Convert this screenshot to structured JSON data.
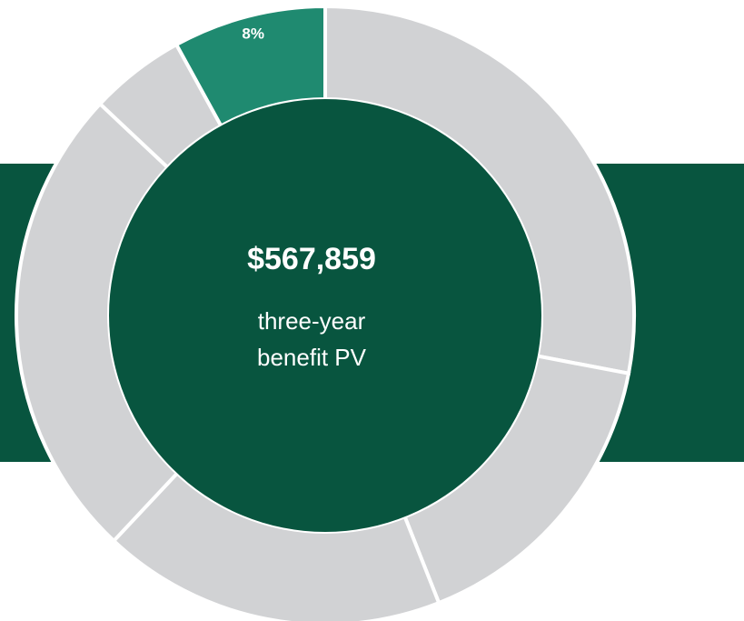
{
  "chart_data": {
    "type": "donut",
    "values": [
      28,
      16,
      18,
      25,
      5,
      8
    ],
    "value_labels": [
      null,
      null,
      null,
      null,
      null,
      "8%"
    ],
    "colors": [
      "#d1d2d4",
      "#d1d2d4",
      "#d1d2d4",
      "#d1d2d4",
      "#d1d2d4",
      "#1f8a70"
    ],
    "center_value": "$567,859",
    "center_label": [
      "three-year",
      "benefit PV"
    ]
  }
}
